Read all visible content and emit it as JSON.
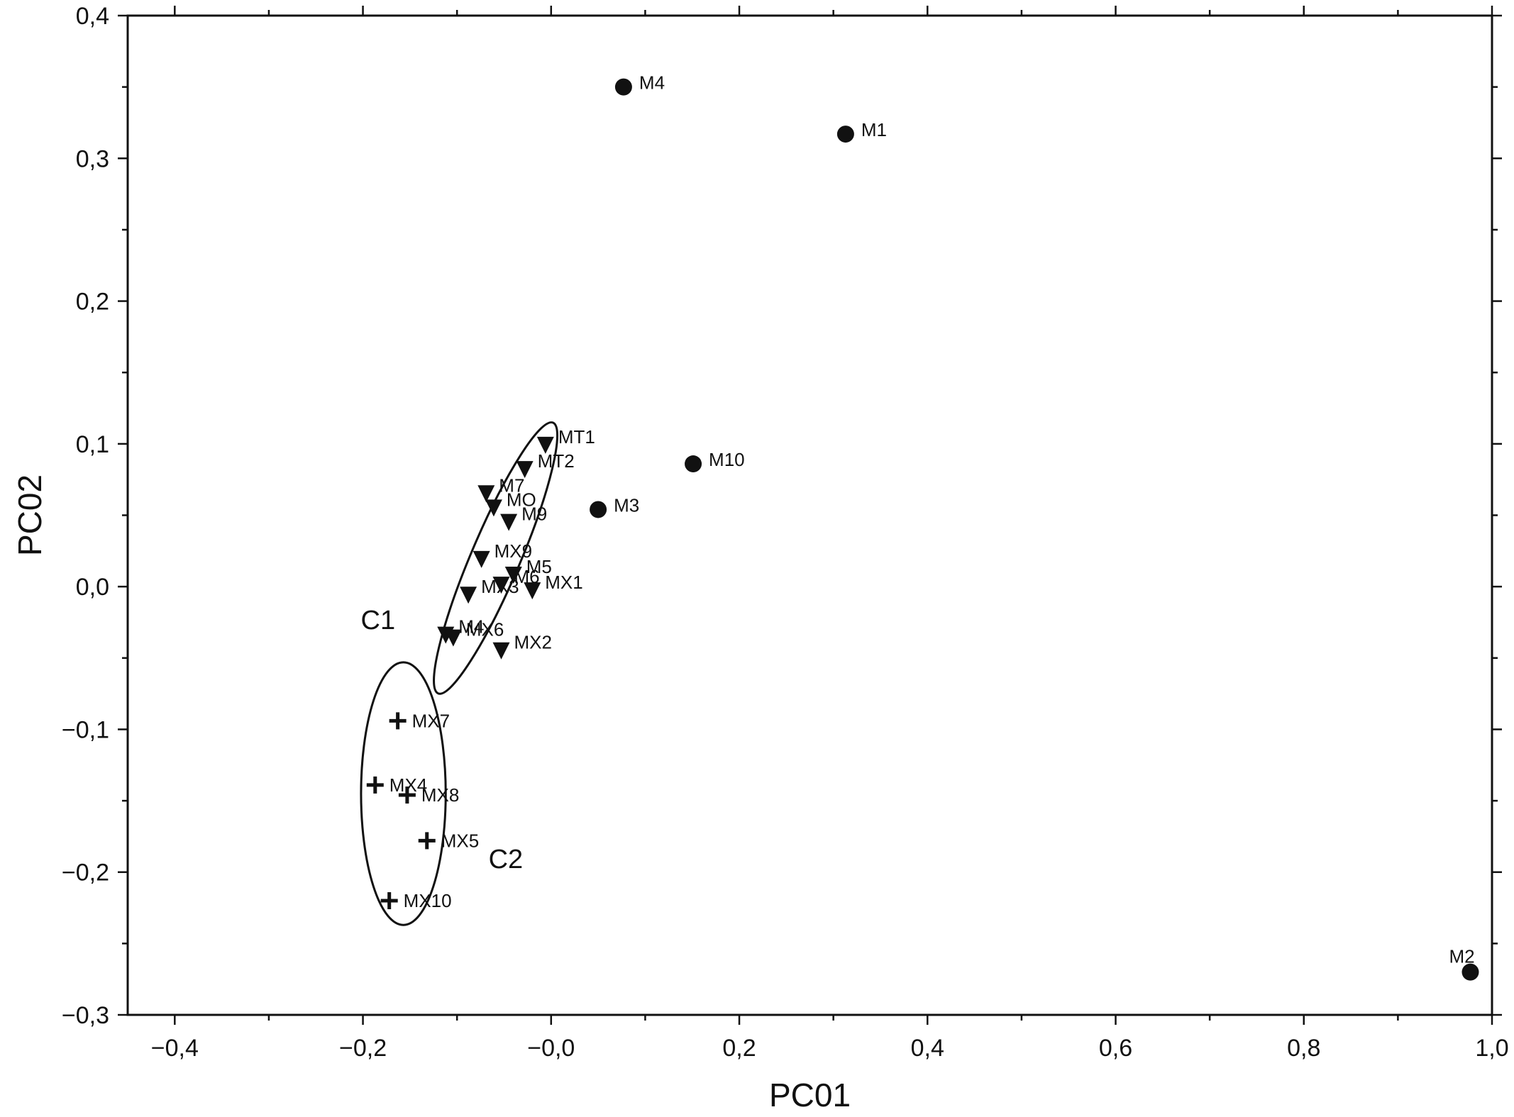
{
  "chart_data": {
    "type": "scatter",
    "xlabel": "PC01",
    "ylabel": "PC02",
    "xlim": [
      -0.45,
      1.0
    ],
    "ylim": [
      -0.3,
      0.4
    ],
    "x_ticks": [
      {
        "value": -0.4,
        "label": "−0,4"
      },
      {
        "value": -0.2,
        "label": "−0,2"
      },
      {
        "value": 0.0,
        "label": "−0,0"
      },
      {
        "value": 0.2,
        "label": "0,2"
      },
      {
        "value": 0.4,
        "label": "0,4"
      },
      {
        "value": 0.6,
        "label": "0,6"
      },
      {
        "value": 0.8,
        "label": "0,8"
      },
      {
        "value": 1.0,
        "label": "1,0"
      }
    ],
    "y_ticks": [
      {
        "value": 0.4,
        "label": "0,4"
      },
      {
        "value": 0.3,
        "label": "0,3"
      },
      {
        "value": 0.2,
        "label": "0,2"
      },
      {
        "value": 0.1,
        "label": "0,1"
      },
      {
        "value": 0.0,
        "label": "0,0"
      },
      {
        "value": -0.1,
        "label": "−0,1"
      },
      {
        "value": -0.2,
        "label": "−0,2"
      },
      {
        "value": -0.3,
        "label": "−0,3"
      }
    ],
    "series": [
      {
        "marker": "circle",
        "points": [
          {
            "label": "M4",
            "x": 0.077,
            "y": 0.35
          },
          {
            "label": "M1",
            "x": 0.313,
            "y": 0.317
          },
          {
            "label": "M10",
            "x": 0.151,
            "y": 0.086
          },
          {
            "label": "M3",
            "x": 0.05,
            "y": 0.054
          },
          {
            "label": "M2",
            "x": 0.977,
            "y": -0.27
          }
        ]
      },
      {
        "marker": "triangle-down",
        "points": [
          {
            "label": "MT1",
            "x": -0.006,
            "y": 0.099
          },
          {
            "label": "MT2",
            "x": -0.028,
            "y": 0.082
          },
          {
            "label": "M7",
            "x": -0.069,
            "y": 0.065
          },
          {
            "label": "MO",
            "x": -0.061,
            "y": 0.055
          },
          {
            "label": "M9",
            "x": -0.045,
            "y": 0.045
          },
          {
            "label": "MX9",
            "x": -0.074,
            "y": 0.019
          },
          {
            "label": "M5",
            "x": -0.04,
            "y": 0.008
          },
          {
            "label": "M6",
            "x": -0.053,
            "y": 0.001
          },
          {
            "label": "MX1",
            "x": -0.02,
            "y": -0.003
          },
          {
            "label": "MX3",
            "x": -0.088,
            "y": -0.006
          },
          {
            "label": "M4",
            "x": -0.112,
            "y": -0.034
          },
          {
            "label": "MX6",
            "x": -0.104,
            "y": -0.036
          },
          {
            "label": "MX2",
            "x": -0.053,
            "y": -0.045
          }
        ]
      },
      {
        "marker": "plus",
        "points": [
          {
            "label": "MX7",
            "x": -0.163,
            "y": -0.094
          },
          {
            "label": "MX4",
            "x": -0.187,
            "y": -0.139
          },
          {
            "label": "MX8",
            "x": -0.153,
            "y": -0.146
          },
          {
            "label": "MX5",
            "x": -0.132,
            "y": -0.178
          },
          {
            "label": "MX10",
            "x": -0.172,
            "y": -0.22
          }
        ]
      }
    ],
    "clusters": [
      {
        "label": "C1",
        "cx": -0.059,
        "cy": 0.02,
        "rx": 0.026,
        "ry": 0.103,
        "angle_deg": 23
      },
      {
        "label": "C2",
        "cx": -0.157,
        "cy": -0.145,
        "rx": 0.045,
        "ry": 0.092,
        "angle_deg": 0
      }
    ]
  }
}
